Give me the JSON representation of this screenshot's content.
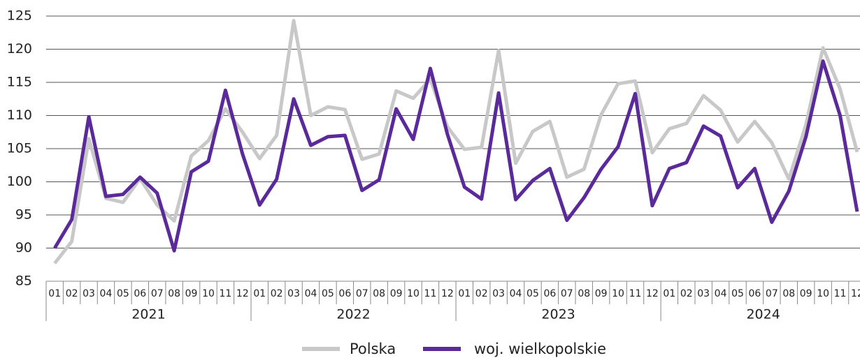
{
  "chart_data": {
    "type": "line",
    "categories": [
      "01",
      "02",
      "03",
      "04",
      "05",
      "06",
      "07",
      "08",
      "09",
      "10",
      "11",
      "12",
      "01",
      "02",
      "03",
      "04",
      "05",
      "06",
      "07",
      "08",
      "09",
      "10",
      "11",
      "12",
      "01",
      "02",
      "03",
      "04",
      "05",
      "06",
      "07",
      "08",
      "09",
      "10",
      "11",
      "12",
      "01",
      "02",
      "03",
      "04",
      "05",
      "06",
      "07",
      "08",
      "09",
      "10",
      "11",
      "12"
    ],
    "years": [
      "2021",
      "2022",
      "2023",
      "2024"
    ],
    "series": [
      {
        "name": "Polska",
        "color": "#c8c8c8",
        "values": [
          87.7,
          91,
          106.5,
          97.5,
          96.9,
          100.5,
          96.5,
          94.1,
          103.9,
          106.2,
          111,
          107.5,
          103.5,
          107,
          124.3,
          110,
          111.3,
          110.9,
          103.4,
          104.2,
          113.7,
          112.6,
          115.5,
          108.3,
          104.9,
          105.2,
          119.8,
          102.8,
          107.6,
          109.1,
          100.7,
          101.9,
          110.1,
          114.8,
          115.2,
          104.4,
          108,
          108.8,
          113,
          110.8,
          106,
          109.1,
          105.9,
          100.4,
          108.6,
          120.2,
          114,
          104.5
        ]
      },
      {
        "name": "woj. wielkopolskie",
        "color": "#5b2a9a",
        "values": [
          90,
          94.3,
          109.8,
          97.8,
          98.1,
          100.7,
          98.3,
          89.6,
          101.5,
          103.1,
          113.8,
          104.2,
          96.5,
          100.4,
          112.5,
          105.5,
          106.8,
          107,
          98.7,
          100.3,
          111,
          106.4,
          117.1,
          107.2,
          99.2,
          97.4,
          113.4,
          97.3,
          100.2,
          102,
          94.2,
          97.6,
          101.9,
          105.3,
          113.3,
          96.4,
          102,
          102.9,
          108.4,
          106.9,
          99.1,
          102,
          93.9,
          98.6,
          106.8,
          118.2,
          110,
          95.5
        ]
      }
    ],
    "ylim": [
      85,
      125
    ],
    "yticks": [
      85,
      90,
      95,
      100,
      105,
      110,
      115,
      120,
      125
    ],
    "grid": true
  }
}
